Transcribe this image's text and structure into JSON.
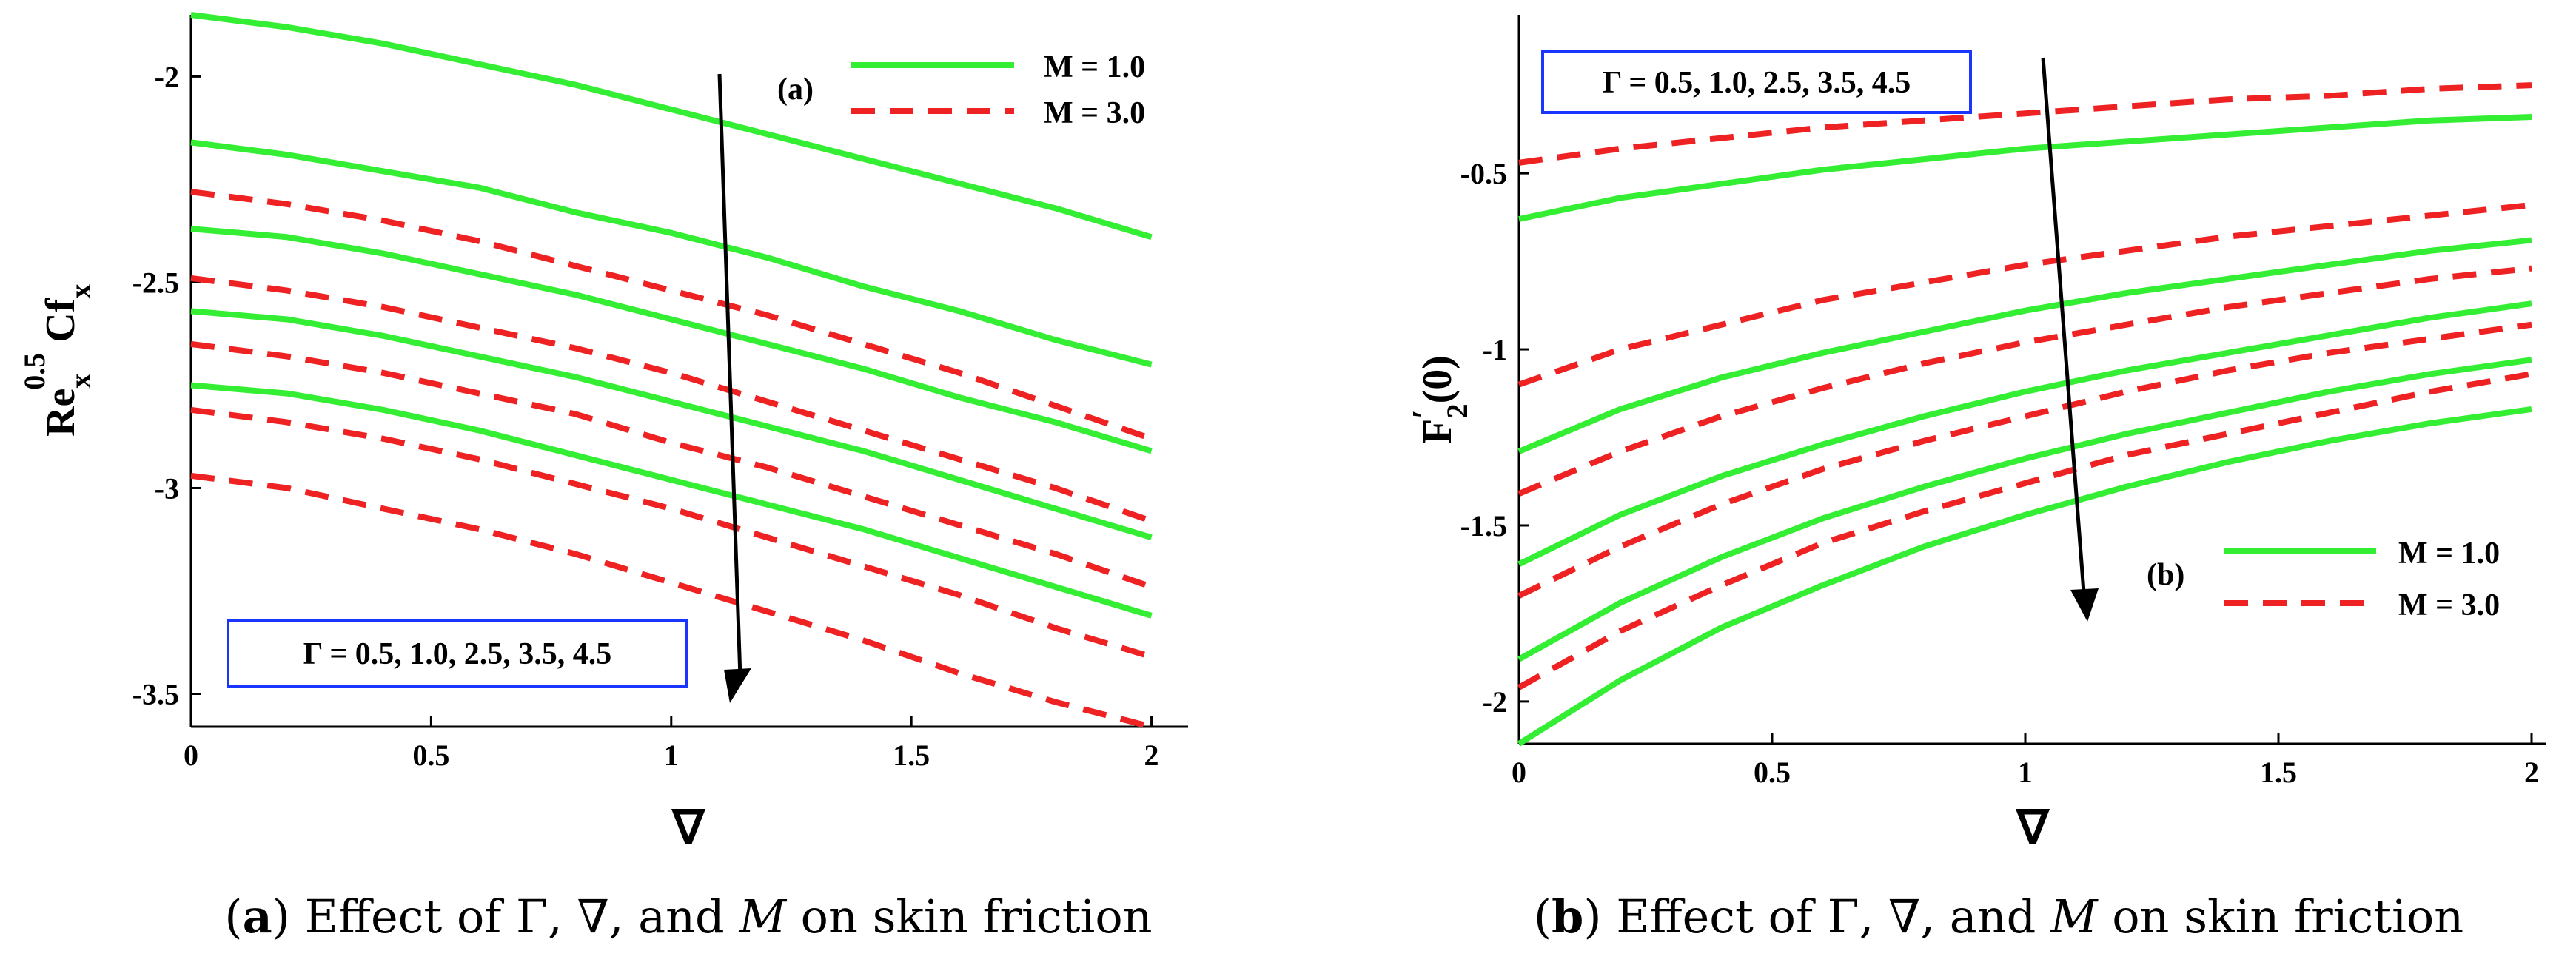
{
  "figures": [
    {
      "panel_label": "(a)",
      "caption": {
        "prefix": "(",
        "letter": "a",
        "mid": ") Effect of Γ, ∇, and ",
        "var": "M",
        "suffix": " on skin friction"
      },
      "gamma_label": "Γ = 0.5, 1.0, 2.5, 3.5, 4.5",
      "ylabel_parts": {
        "base": "Re",
        "sup": "0.5",
        "sub": "x",
        "base2": " Cf",
        "sub2": "x"
      },
      "xlabel": "∇"
    },
    {
      "panel_label": "(b)",
      "caption": {
        "prefix": "(",
        "letter": "b",
        "mid": ") Effect of Γ, ∇, and ",
        "var": "M",
        "suffix": " on skin friction"
      },
      "gamma_label": "Γ = 0.5, 1.0, 2.5, 3.5, 4.5",
      "ylabel_parts": {
        "base": "F",
        "sup": "′",
        "sub": "2",
        "tail": "(0)"
      },
      "xlabel": "∇"
    }
  ],
  "chart_data": [
    {
      "type": "line",
      "title": "",
      "xlabel": "∇",
      "ylabel": "Re_x^0.5 Cf_x",
      "xlim": [
        0,
        2.05
      ],
      "ylim": [
        -3.58,
        -1.85
      ],
      "xticks": [
        0,
        0.5,
        1,
        1.5,
        2
      ],
      "xtick_labels": [
        "0",
        "0.5",
        "1",
        "1.5",
        "2"
      ],
      "yticks": [
        -2,
        -2.5,
        -3,
        -3.5
      ],
      "ytick_labels": [
        "-2",
        "-2.5",
        "-3",
        "-3.5"
      ],
      "legend": [
        "M = 1.0",
        "M = 3.0"
      ],
      "colors": {
        "M = 1.0": "#33ee33",
        "M = 3.0": "#ee2222"
      },
      "x": [
        0,
        0.2,
        0.4,
        0.6,
        0.8,
        1.0,
        1.2,
        1.4,
        1.6,
        1.8,
        2.0
      ],
      "series": [
        {
          "name": "M = 1.0",
          "gamma": 0.5,
          "values": [
            -1.85,
            -1.88,
            -1.92,
            -1.97,
            -2.02,
            -2.08,
            -2.14,
            -2.2,
            -2.26,
            -2.32,
            -2.39
          ]
        },
        {
          "name": "M = 1.0",
          "gamma": 1.0,
          "values": [
            -2.16,
            -2.19,
            -2.23,
            -2.27,
            -2.33,
            -2.38,
            -2.44,
            -2.51,
            -2.57,
            -2.64,
            -2.7
          ]
        },
        {
          "name": "M = 1.0",
          "gamma": 2.5,
          "values": [
            -2.37,
            -2.39,
            -2.43,
            -2.48,
            -2.53,
            -2.59,
            -2.65,
            -2.71,
            -2.78,
            -2.84,
            -2.91
          ]
        },
        {
          "name": "M = 1.0",
          "gamma": 3.5,
          "values": [
            -2.57,
            -2.59,
            -2.63,
            -2.68,
            -2.73,
            -2.79,
            -2.85,
            -2.91,
            -2.98,
            -3.05,
            -3.12
          ]
        },
        {
          "name": "M = 1.0",
          "gamma": 4.5,
          "values": [
            -2.75,
            -2.77,
            -2.81,
            -2.86,
            -2.92,
            -2.98,
            -3.04,
            -3.1,
            -3.17,
            -3.24,
            -3.31
          ]
        },
        {
          "name": "M = 3.0",
          "gamma": 0.5,
          "values": [
            -2.28,
            -2.31,
            -2.35,
            -2.4,
            -2.46,
            -2.52,
            -2.58,
            -2.65,
            -2.72,
            -2.8,
            -2.88
          ]
        },
        {
          "name": "M = 3.0",
          "gamma": 1.0,
          "values": [
            -2.49,
            -2.52,
            -2.56,
            -2.61,
            -2.66,
            -2.72,
            -2.79,
            -2.86,
            -2.93,
            -3.0,
            -3.08
          ]
        },
        {
          "name": "M = 3.0",
          "gamma": 2.5,
          "values": [
            -2.65,
            -2.68,
            -2.72,
            -2.77,
            -2.82,
            -2.89,
            -2.95,
            -3.02,
            -3.09,
            -3.16,
            -3.24
          ]
        },
        {
          "name": "M = 3.0",
          "gamma": 3.5,
          "values": [
            -2.81,
            -2.84,
            -2.88,
            -2.93,
            -2.99,
            -3.05,
            -3.12,
            -3.19,
            -3.26,
            -3.34,
            -3.41
          ]
        },
        {
          "name": "M = 3.0",
          "gamma": 4.5,
          "values": [
            -2.97,
            -3.0,
            -3.05,
            -3.1,
            -3.16,
            -3.23,
            -3.3,
            -3.37,
            -3.45,
            -3.52,
            -3.58
          ]
        }
      ],
      "annotations": [
        "(a)",
        "Γ = 0.5, 1.0, 2.5, 3.5, 4.5"
      ],
      "legend_position": "top-right",
      "grid": false
    },
    {
      "type": "line",
      "title": "",
      "xlabel": "∇",
      "ylabel": "F'_2(0)",
      "xlim": [
        0,
        2
      ],
      "ylim": [
        -2.12,
        -0.05
      ],
      "xticks": [
        0,
        0.5,
        1,
        1.5,
        2
      ],
      "xtick_labels": [
        "0",
        "0.5",
        "1",
        "1.5",
        "2"
      ],
      "yticks": [
        -0.5,
        -1,
        -1.5,
        -2
      ],
      "ytick_labels": [
        "-0.5",
        "-1",
        "-1.5",
        "-2"
      ],
      "legend": [
        "M = 1.0",
        "M = 3.0"
      ],
      "colors": {
        "M = 1.0": "#33ee33",
        "M = 3.0": "#ee2222"
      },
      "x": [
        0,
        0.2,
        0.4,
        0.6,
        0.8,
        1.0,
        1.2,
        1.4,
        1.6,
        1.8,
        2.0
      ],
      "series": [
        {
          "name": "M = 3.0",
          "gamma": 0.5,
          "values": [
            -0.47,
            -0.43,
            -0.4,
            -0.37,
            -0.35,
            -0.33,
            -0.31,
            -0.29,
            -0.28,
            -0.26,
            -0.25
          ]
        },
        {
          "name": "M = 1.0",
          "gamma": 0.5,
          "values": [
            -0.63,
            -0.57,
            -0.53,
            -0.49,
            -0.46,
            -0.43,
            -0.41,
            -0.39,
            -0.37,
            -0.35,
            -0.34
          ]
        },
        {
          "name": "M = 3.0",
          "gamma": 1.0,
          "values": [
            -1.1,
            -1.0,
            -0.93,
            -0.86,
            -0.81,
            -0.76,
            -0.72,
            -0.68,
            -0.65,
            -0.62,
            -0.59
          ]
        },
        {
          "name": "M = 1.0",
          "gamma": 1.0,
          "values": [
            -1.29,
            -1.17,
            -1.08,
            -1.01,
            -0.95,
            -0.89,
            -0.84,
            -0.8,
            -0.76,
            -0.72,
            -0.69
          ]
        },
        {
          "name": "M = 3.0",
          "gamma": 2.5,
          "values": [
            -1.41,
            -1.29,
            -1.19,
            -1.11,
            -1.04,
            -0.98,
            -0.93,
            -0.88,
            -0.84,
            -0.8,
            -0.77
          ]
        },
        {
          "name": "M = 1.0",
          "gamma": 2.5,
          "values": [
            -1.61,
            -1.47,
            -1.36,
            -1.27,
            -1.19,
            -1.12,
            -1.06,
            -1.01,
            -0.96,
            -0.91,
            -0.87
          ]
        },
        {
          "name": "M = 3.0",
          "gamma": 3.5,
          "values": [
            -1.7,
            -1.56,
            -1.44,
            -1.34,
            -1.26,
            -1.19,
            -1.12,
            -1.06,
            -1.01,
            -0.97,
            -0.93
          ]
        },
        {
          "name": "M = 1.0",
          "gamma": 3.5,
          "values": [
            -1.88,
            -1.72,
            -1.59,
            -1.48,
            -1.39,
            -1.31,
            -1.24,
            -1.18,
            -1.12,
            -1.07,
            -1.03
          ]
        },
        {
          "name": "M = 3.0",
          "gamma": 4.5,
          "values": [
            -1.96,
            -1.8,
            -1.67,
            -1.55,
            -1.46,
            -1.38,
            -1.3,
            -1.24,
            -1.18,
            -1.12,
            -1.07
          ]
        },
        {
          "name": "M = 1.0",
          "gamma": 4.5,
          "values": [
            -2.12,
            -1.94,
            -1.79,
            -1.67,
            -1.56,
            -1.47,
            -1.39,
            -1.32,
            -1.26,
            -1.21,
            -1.17
          ]
        }
      ],
      "annotations": [
        "(b)",
        "Γ = 0.5, 1.0, 2.5, 3.5, 4.5"
      ],
      "legend_position": "lower-right",
      "grid": false
    }
  ]
}
